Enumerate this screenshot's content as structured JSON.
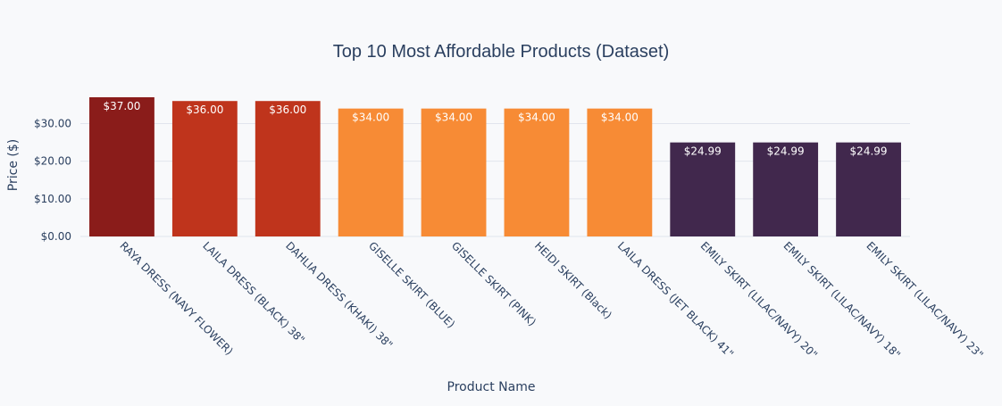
{
  "chart_data": {
    "type": "bar",
    "title": "Top 10 Most Affordable Products (Dataset)",
    "xlabel": "Product Name",
    "ylabel": "Price ($)",
    "ylim": [
      0,
      37
    ],
    "yticks": [
      0,
      10,
      20,
      30
    ],
    "ytick_labels": [
      "$0.00",
      "$10.00",
      "$20.00",
      "$30.00"
    ],
    "grid": true,
    "legend": "none",
    "categories": [
      "RAYA DRESS (NAVY FLOWER)",
      "LAILA DRESS (BLACK) 38\"",
      "DAHLIA DRESS (KHAKI) 38\"",
      "GISELLE SKIRT (BLUE)",
      "GISELLE SKIRT (PINK)",
      "HEIDI SKIRT (Black)",
      "LAILA DRESS (JET BLACK) 41\"",
      "EMILY SKIRT (LILAC/NAVY) 20\"",
      "EMILY SKIRT (LILAC/NAVY) 18\"",
      "EMILY SKIRT (LILAC/NAVY) 23\""
    ],
    "values": [
      37.0,
      36.0,
      36.0,
      34.0,
      34.0,
      34.0,
      34.0,
      24.99,
      24.99,
      24.99
    ],
    "data_labels": [
      "$37.00",
      "$36.00",
      "$36.00",
      "$34.00",
      "$34.00",
      "$34.00",
      "$34.00",
      "$24.99",
      "$24.99",
      "$24.99"
    ],
    "colors": [
      "#8a1c1a",
      "#bf341c",
      "#bf341c",
      "#f78b35",
      "#f78b35",
      "#f78b35",
      "#f78b35",
      "#41284d",
      "#41284d",
      "#41284d"
    ]
  }
}
